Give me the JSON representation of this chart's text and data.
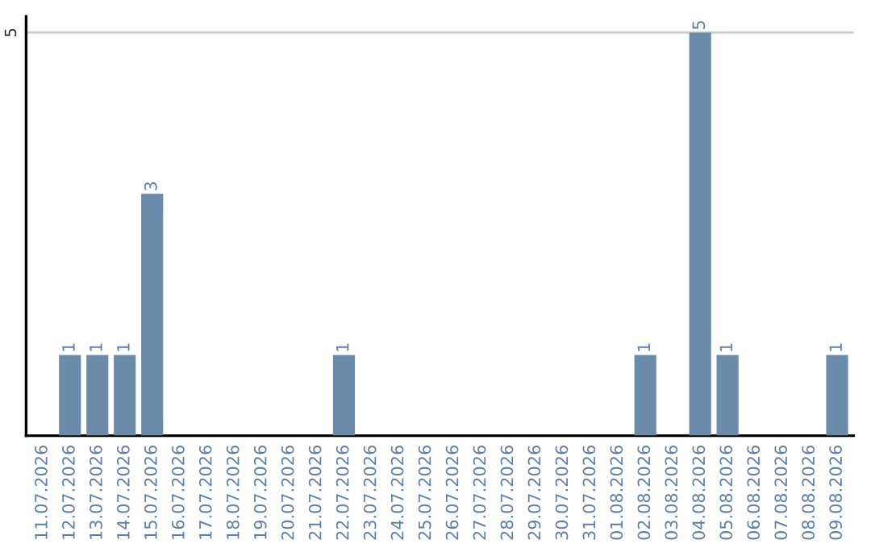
{
  "chart_data": {
    "type": "bar",
    "categories": [
      "11.07.2026",
      "12.07.2026",
      "13.07.2026",
      "14.07.2026",
      "15.07.2026",
      "16.07.2026",
      "17.07.2026",
      "18.07.2026",
      "19.07.2026",
      "20.07.2026",
      "21.07.2026",
      "22.07.2026",
      "23.07.2026",
      "24.07.2026",
      "25.07.2026",
      "26.07.2026",
      "27.07.2026",
      "28.07.2026",
      "29.07.2026",
      "30.07.2026",
      "31.07.2026",
      "01.08.2026",
      "02.08.2026",
      "03.08.2026",
      "04.08.2026",
      "05.08.2026",
      "06.08.2026",
      "07.08.2026",
      "08.08.2026",
      "09.08.2026"
    ],
    "values": [
      null,
      1,
      1,
      1,
      3,
      null,
      null,
      null,
      null,
      null,
      null,
      1,
      null,
      null,
      null,
      null,
      null,
      null,
      null,
      null,
      null,
      null,
      1,
      null,
      5,
      1,
      null,
      null,
      null,
      1
    ],
    "value_labels": [
      null,
      "1",
      "1",
      "1",
      "3",
      null,
      null,
      null,
      null,
      null,
      null,
      "1",
      null,
      null,
      null,
      null,
      null,
      null,
      null,
      null,
      null,
      null,
      "1",
      null,
      "5",
      "1",
      null,
      null,
      null,
      "1"
    ],
    "color": "#6a8caa",
    "ylim": [
      0,
      5.2
    ],
    "yticks": [
      5
    ],
    "grid": "y",
    "legend": false
  }
}
